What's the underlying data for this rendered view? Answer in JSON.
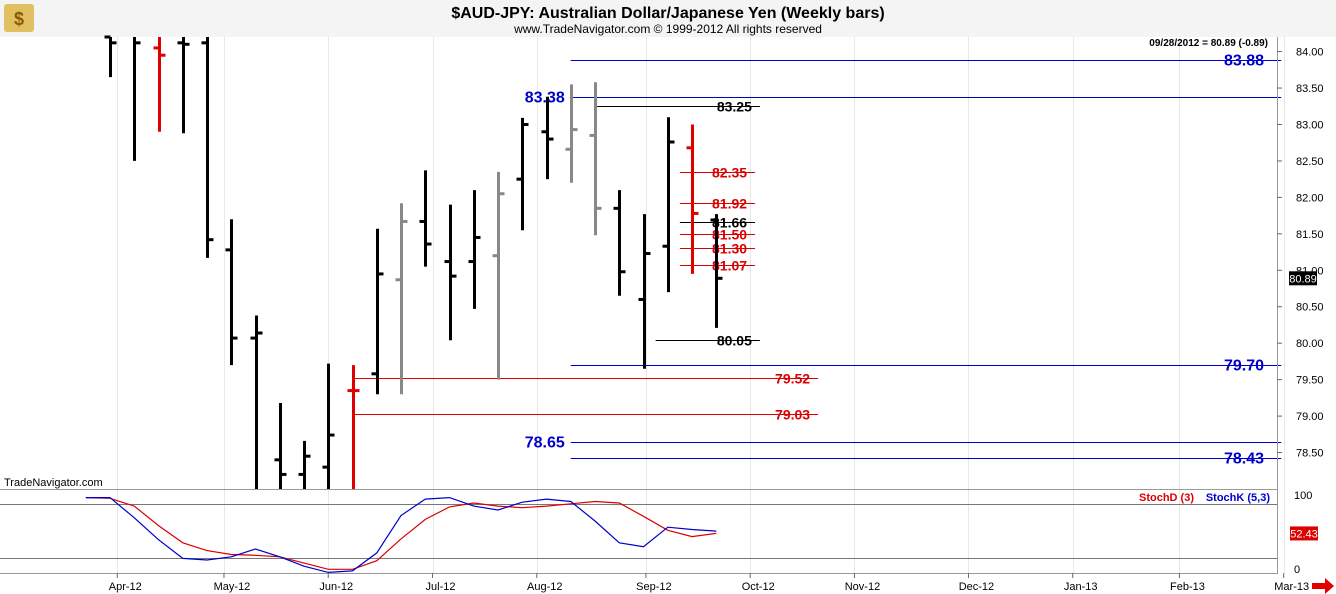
{
  "header": {
    "title": "$AUD-JPY:  Australian Dollar/Japanese Yen  (Weekly bars)",
    "copyright": "www.TradeNavigator.com © 1999-2012 All rights reserved",
    "last_quote": "09/28/2012 = 80.89 (-0.89)",
    "watermark": "TradeNavigator.com",
    "logo": "trade-navigator-logo"
  },
  "colors": {
    "up_bar": "#000000",
    "down_bar": "#e00000",
    "gray_bar": "#888888",
    "blue_level": "#0000cc",
    "red_level": "#dd0000",
    "black_level": "#000000",
    "stoch_d": "#dd0000",
    "stoch_k": "#0000cc",
    "price_tag_bg": "#000000",
    "stoch_tag_bg": "#dd0000"
  },
  "chart_data": [
    {
      "type": "ohlc",
      "price_axis": {
        "min": 78.0,
        "max": 84.2,
        "ticks": [
          "78.50",
          "79.00",
          "79.50",
          "80.00",
          "80.50",
          "81.00",
          "81.50",
          "82.00",
          "82.50",
          "83.00",
          "83.50",
          "84.00"
        ],
        "side": "right"
      },
      "last_price_label": "80.89",
      "x_axis": {
        "labels": [
          {
            "text": "Apr-12",
            "week": 0.3
          },
          {
            "text": "May-12",
            "week": 4.7
          },
          {
            "text": "Jun-12",
            "week": 9.0
          },
          {
            "text": "Jul-12",
            "week": 13.3
          },
          {
            "text": "Aug-12",
            "week": 17.6
          },
          {
            "text": "Sep-12",
            "week": 22.1
          },
          {
            "text": "Oct-12",
            "week": 26.4
          },
          {
            "text": "Nov-12",
            "week": 30.7
          },
          {
            "text": "Dec-12",
            "week": 35.4
          },
          {
            "text": "Jan-13",
            "week": 39.7
          },
          {
            "text": "Feb-13",
            "week": 44.1
          },
          {
            "text": "Mar-13",
            "week": 48.4
          }
        ]
      },
      "bars": [
        {
          "week": 0,
          "o": 84.2,
          "h": 84.4,
          "l": 83.65,
          "c": 84.12,
          "color": "black"
        },
        {
          "week": 1,
          "o": 84.25,
          "h": 84.4,
          "l": 82.5,
          "c": 84.12,
          "color": "black"
        },
        {
          "week": 2,
          "o": 84.05,
          "h": 84.3,
          "l": 82.9,
          "c": 83.95,
          "color": "red"
        },
        {
          "week": 3,
          "o": 84.12,
          "h": 84.4,
          "l": 82.88,
          "c": 84.1,
          "color": "black"
        },
        {
          "week": 4,
          "o": 84.12,
          "h": 84.2,
          "l": 81.17,
          "c": 81.42,
          "color": "black"
        },
        {
          "week": 5,
          "o": 81.28,
          "h": 81.7,
          "l": 79.7,
          "c": 80.07,
          "color": "black"
        },
        {
          "week": 6,
          "o": 80.07,
          "h": 80.38,
          "l": 77.9,
          "c": 80.14,
          "color": "black"
        },
        {
          "week": 7,
          "o": 78.4,
          "h": 79.18,
          "l": 77.9,
          "c": 78.2,
          "color": "black"
        },
        {
          "week": 8,
          "o": 78.2,
          "h": 78.66,
          "l": 77.9,
          "c": 78.45,
          "color": "black"
        },
        {
          "week": 9,
          "o": 78.3,
          "h": 79.72,
          "l": 78.0,
          "c": 78.74,
          "color": "black"
        },
        {
          "week": 10,
          "o": 79.35,
          "h": 79.7,
          "l": 78.0,
          "c": 79.35,
          "color": "red"
        },
        {
          "week": 11,
          "o": 79.58,
          "h": 81.57,
          "l": 79.3,
          "c": 80.95,
          "color": "black"
        },
        {
          "week": 12,
          "o": 80.87,
          "h": 81.92,
          "l": 79.3,
          "c": 81.67,
          "color": "gray"
        },
        {
          "week": 13,
          "o": 81.67,
          "h": 82.37,
          "l": 81.05,
          "c": 81.36,
          "color": "black"
        },
        {
          "week": 14,
          "o": 81.12,
          "h": 81.9,
          "l": 80.04,
          "c": 80.92,
          "color": "black"
        },
        {
          "week": 15,
          "o": 81.12,
          "h": 82.1,
          "l": 80.47,
          "c": 81.45,
          "color": "black"
        },
        {
          "week": 16,
          "o": 81.2,
          "h": 82.35,
          "l": 79.5,
          "c": 82.05,
          "color": "gray"
        },
        {
          "week": 17,
          "o": 82.25,
          "h": 83.09,
          "l": 81.55,
          "c": 83.0,
          "color": "black"
        },
        {
          "week": 18,
          "o": 82.9,
          "h": 83.38,
          "l": 82.25,
          "c": 82.8,
          "color": "black"
        },
        {
          "week": 19,
          "o": 82.66,
          "h": 83.55,
          "l": 82.2,
          "c": 82.93,
          "color": "gray"
        },
        {
          "week": 20,
          "o": 82.85,
          "h": 83.58,
          "l": 81.48,
          "c": 81.85,
          "color": "gray"
        },
        {
          "week": 21,
          "o": 81.85,
          "h": 82.1,
          "l": 80.65,
          "c": 80.98,
          "color": "black"
        },
        {
          "week": 22,
          "o": 80.6,
          "h": 81.77,
          "l": 79.65,
          "c": 81.23,
          "color": "black"
        },
        {
          "week": 23,
          "o": 81.33,
          "h": 83.1,
          "l": 80.7,
          "c": 82.76,
          "color": "black"
        },
        {
          "week": 24,
          "o": 82.68,
          "h": 83.0,
          "l": 80.95,
          "c": 81.78,
          "color": "red"
        },
        {
          "week": 25,
          "o": 81.69,
          "h": 81.77,
          "l": 80.21,
          "c": 80.89,
          "color": "black"
        }
      ],
      "levels": [
        {
          "value": 83.88,
          "label": "83.88",
          "color": "blue",
          "start_week": 19,
          "end_week": 48.3,
          "label_pos": "right"
        },
        {
          "value": 83.38,
          "label": "83.38",
          "color": "blue",
          "start_week": 19,
          "end_week": 48.3,
          "label_pos": "left"
        },
        {
          "value": 83.25,
          "label": "83.25",
          "color": "black",
          "start_week": 20,
          "end_week": 26.8,
          "label_pos": "end"
        },
        {
          "value": 82.35,
          "label": "82.35",
          "color": "red",
          "start_week": 23.5,
          "end_week": 26.6,
          "label_pos": "end"
        },
        {
          "value": 81.92,
          "label": "81.92",
          "color": "red",
          "start_week": 23.5,
          "end_week": 26.6,
          "label_pos": "end"
        },
        {
          "value": 81.66,
          "label": "81.66",
          "color": "black",
          "start_week": 23.5,
          "end_week": 26.6,
          "label_pos": "end"
        },
        {
          "value": 81.5,
          "label": "81.50",
          "color": "red",
          "start_week": 23.5,
          "end_week": 26.6,
          "label_pos": "end"
        },
        {
          "value": 81.3,
          "label": "81.30",
          "color": "red",
          "start_week": 23.5,
          "end_week": 26.6,
          "label_pos": "end"
        },
        {
          "value": 81.07,
          "label": "81.07",
          "color": "red",
          "start_week": 23.5,
          "end_week": 26.6,
          "label_pos": "end"
        },
        {
          "value": 80.05,
          "label": "80.05",
          "color": "black",
          "start_week": 22.5,
          "end_week": 26.8,
          "label_pos": "end"
        },
        {
          "value": 79.7,
          "label": "79.70",
          "color": "blue",
          "start_week": 19,
          "end_week": 48.3,
          "label_pos": "right"
        },
        {
          "value": 79.52,
          "label": "79.52",
          "color": "red",
          "start_week": 10,
          "end_week": 29.2,
          "label_pos": "end"
        },
        {
          "value": 79.03,
          "label": "79.03",
          "color": "red",
          "start_week": 10,
          "end_week": 29.2,
          "label_pos": "end"
        },
        {
          "value": 78.65,
          "label": "78.65",
          "color": "blue",
          "start_week": 19,
          "end_week": 48.3,
          "label_pos": "left"
        },
        {
          "value": 78.43,
          "label": "78.43",
          "color": "blue",
          "start_week": 19,
          "end_week": 48.3,
          "label_pos": "right"
        }
      ]
    },
    {
      "type": "line",
      "y_axis": {
        "min": 0,
        "max": 100,
        "ticks": [
          "0",
          "100"
        ],
        "side": "right"
      },
      "legend": [
        "StochD (3)",
        "StochK (5,3)"
      ],
      "last_value_label": "52.43",
      "series": [
        {
          "name": "StochD (3)",
          "color": "red",
          "x": [
            -1,
            0,
            1,
            2,
            3,
            4,
            5,
            6,
            7,
            8,
            9,
            10,
            11,
            12,
            13,
            14,
            15,
            16,
            17,
            18,
            19,
            20,
            21,
            22,
            23,
            24,
            25
          ],
          "values": [
            98,
            97,
            87,
            62,
            40,
            30,
            25,
            24,
            22,
            14,
            6,
            6,
            17,
            45,
            70,
            86,
            91,
            87,
            85,
            87,
            90,
            93,
            91,
            74,
            56,
            48,
            52
          ]
        },
        {
          "name": "StochK (5,3)",
          "color": "blue",
          "x": [
            -1,
            0,
            1,
            2,
            3,
            4,
            5,
            6,
            7,
            8,
            9,
            10,
            11,
            12,
            13,
            14,
            15,
            16,
            17,
            18,
            19,
            20,
            21,
            22,
            23,
            24,
            25
          ],
          "values": [
            98,
            98,
            72,
            44,
            20,
            18,
            22,
            32,
            22,
            10,
            2,
            4,
            27,
            75,
            96,
            98,
            87,
            82,
            92,
            96,
            93,
            68,
            40,
            35,
            60,
            57,
            55
          ]
        }
      ]
    }
  ]
}
